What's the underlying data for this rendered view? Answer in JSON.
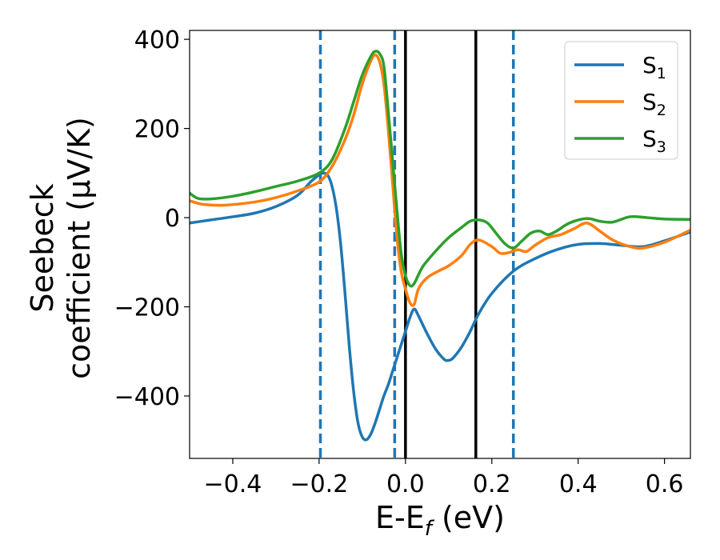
{
  "chart_data": {
    "type": "line",
    "xlabel": {
      "main": "E-E",
      "sub": "f",
      "unit": " (eV)"
    },
    "ylabel": {
      "line1": "Seebeck",
      "line2": "coefficient  (μV/K)"
    },
    "xlim": [
      -0.5,
      0.66
    ],
    "ylim": [
      -540,
      420
    ],
    "xticks": [
      -0.4,
      -0.2,
      0.0,
      0.2,
      0.4,
      0.6
    ],
    "xtick_labels": [
      "−0.4",
      "−0.2",
      "0.0",
      "0.2",
      "0.4",
      "0.6"
    ],
    "yticks": [
      -400,
      -200,
      0,
      200,
      400
    ],
    "ytick_labels": [
      "−400",
      "−200",
      "0",
      "200",
      "400"
    ],
    "grid": false,
    "legend_position": "top-right",
    "vlines": [
      {
        "x": -0.197,
        "style": "dashed",
        "color": "#1f77b4"
      },
      {
        "x": -0.025,
        "style": "dashed",
        "color": "#1f77b4"
      },
      {
        "x": 0.25,
        "style": "dashed",
        "color": "#1f77b4"
      },
      {
        "x": 0.0,
        "style": "solid",
        "color": "#000000"
      },
      {
        "x": 0.163,
        "style": "solid",
        "color": "#000000"
      }
    ],
    "series": [
      {
        "name": "S",
        "sub": "1",
        "color": "#1f77b4",
        "points": [
          [
            -0.5,
            -12
          ],
          [
            -0.45,
            -5
          ],
          [
            -0.4,
            2
          ],
          [
            -0.35,
            10
          ],
          [
            -0.3,
            25
          ],
          [
            -0.25,
            50
          ],
          [
            -0.22,
            80
          ],
          [
            -0.2,
            96
          ],
          [
            -0.19,
            100
          ],
          [
            -0.18,
            95
          ],
          [
            -0.17,
            70
          ],
          [
            -0.16,
            20
          ],
          [
            -0.15,
            -60
          ],
          [
            -0.14,
            -170
          ],
          [
            -0.13,
            -290
          ],
          [
            -0.12,
            -390
          ],
          [
            -0.11,
            -460
          ],
          [
            -0.1,
            -492
          ],
          [
            -0.09,
            -498
          ],
          [
            -0.08,
            -485
          ],
          [
            -0.07,
            -460
          ],
          [
            -0.06,
            -430
          ],
          [
            -0.05,
            -400
          ],
          [
            -0.04,
            -375
          ],
          [
            -0.03,
            -345
          ],
          [
            -0.02,
            -315
          ],
          [
            -0.01,
            -285
          ],
          [
            0.0,
            -255
          ],
          [
            0.01,
            -225
          ],
          [
            0.02,
            -205
          ],
          [
            0.03,
            -220
          ],
          [
            0.05,
            -260
          ],
          [
            0.07,
            -295
          ],
          [
            0.09,
            -318
          ],
          [
            0.1,
            -320
          ],
          [
            0.11,
            -315
          ],
          [
            0.13,
            -290
          ],
          [
            0.15,
            -255
          ],
          [
            0.17,
            -215
          ],
          [
            0.2,
            -170
          ],
          [
            0.25,
            -120
          ],
          [
            0.3,
            -92
          ],
          [
            0.35,
            -72
          ],
          [
            0.4,
            -60
          ],
          [
            0.45,
            -58
          ],
          [
            0.5,
            -62
          ],
          [
            0.55,
            -65
          ],
          [
            0.6,
            -52
          ],
          [
            0.66,
            -32
          ]
        ]
      },
      {
        "name": "S",
        "sub": "2",
        "color": "#ff7f0e",
        "points": [
          [
            -0.5,
            38
          ],
          [
            -0.47,
            30
          ],
          [
            -0.42,
            28
          ],
          [
            -0.35,
            35
          ],
          [
            -0.3,
            45
          ],
          [
            -0.25,
            60
          ],
          [
            -0.2,
            80
          ],
          [
            -0.17,
            115
          ],
          [
            -0.14,
            175
          ],
          [
            -0.12,
            230
          ],
          [
            -0.1,
            300
          ],
          [
            -0.08,
            352
          ],
          [
            -0.07,
            365
          ],
          [
            -0.06,
            350
          ],
          [
            -0.05,
            300
          ],
          [
            -0.04,
            200
          ],
          [
            -0.03,
            80
          ],
          [
            -0.02,
            -40
          ],
          [
            -0.01,
            -120
          ],
          [
            0.0,
            -160
          ],
          [
            0.01,
            -190
          ],
          [
            0.02,
            -195
          ],
          [
            0.03,
            -160
          ],
          [
            0.05,
            -135
          ],
          [
            0.08,
            -118
          ],
          [
            0.1,
            -108
          ],
          [
            0.13,
            -85
          ],
          [
            0.15,
            -60
          ],
          [
            0.17,
            -50
          ],
          [
            0.2,
            -65
          ],
          [
            0.22,
            -80
          ],
          [
            0.24,
            -78
          ],
          [
            0.26,
            -72
          ],
          [
            0.28,
            -76
          ],
          [
            0.3,
            -62
          ],
          [
            0.33,
            -45
          ],
          [
            0.36,
            -38
          ],
          [
            0.39,
            -25
          ],
          [
            0.42,
            -12
          ],
          [
            0.45,
            -30
          ],
          [
            0.48,
            -50
          ],
          [
            0.52,
            -65
          ],
          [
            0.55,
            -68
          ],
          [
            0.6,
            -55
          ],
          [
            0.66,
            -28
          ]
        ]
      },
      {
        "name": "S",
        "sub": "3",
        "color": "#2ca02c",
        "points": [
          [
            -0.5,
            55
          ],
          [
            -0.48,
            43
          ],
          [
            -0.45,
            42
          ],
          [
            -0.4,
            48
          ],
          [
            -0.35,
            58
          ],
          [
            -0.3,
            70
          ],
          [
            -0.25,
            82
          ],
          [
            -0.2,
            100
          ],
          [
            -0.17,
            130
          ],
          [
            -0.14,
            200
          ],
          [
            -0.12,
            260
          ],
          [
            -0.1,
            320
          ],
          [
            -0.08,
            362
          ],
          [
            -0.07,
            373
          ],
          [
            -0.06,
            368
          ],
          [
            -0.05,
            340
          ],
          [
            -0.04,
            240
          ],
          [
            -0.03,
            130
          ],
          [
            -0.02,
            20
          ],
          [
            -0.01,
            -80
          ],
          [
            0.0,
            -130
          ],
          [
            0.01,
            -152
          ],
          [
            0.02,
            -148
          ],
          [
            0.04,
            -110
          ],
          [
            0.07,
            -75
          ],
          [
            0.1,
            -45
          ],
          [
            0.13,
            -22
          ],
          [
            0.15,
            -8
          ],
          [
            0.17,
            -5
          ],
          [
            0.19,
            -12
          ],
          [
            0.21,
            -35
          ],
          [
            0.23,
            -58
          ],
          [
            0.25,
            -68
          ],
          [
            0.27,
            -52
          ],
          [
            0.29,
            -35
          ],
          [
            0.31,
            -30
          ],
          [
            0.33,
            -38
          ],
          [
            0.35,
            -30
          ],
          [
            0.38,
            -12
          ],
          [
            0.42,
            -2
          ],
          [
            0.45,
            -8
          ],
          [
            0.48,
            -10
          ],
          [
            0.52,
            2
          ],
          [
            0.56,
            0
          ],
          [
            0.6,
            -3
          ],
          [
            0.66,
            -4
          ]
        ]
      }
    ]
  }
}
